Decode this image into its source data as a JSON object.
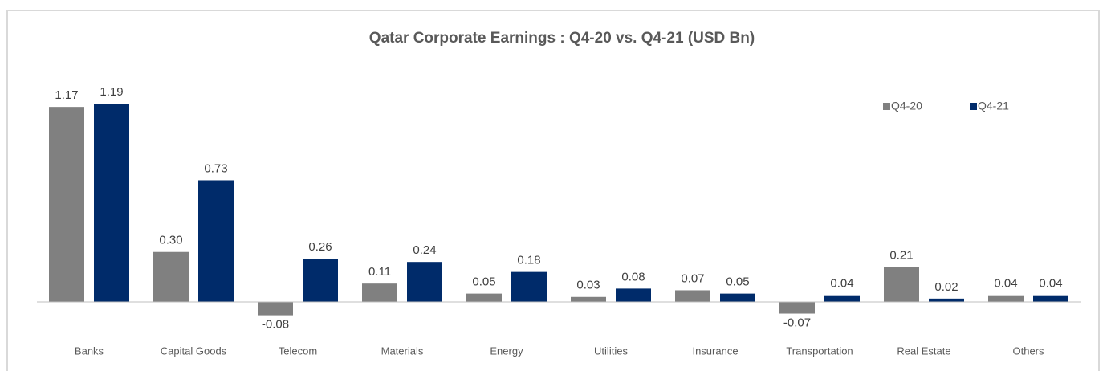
{
  "chart_data": {
    "type": "bar",
    "title": "Qatar Corporate Earnings : Q4-20 vs. Q4-21 (USD Bn)",
    "categories": [
      "Banks",
      "Capital Goods",
      "Telecom",
      "Materials",
      "Energy",
      "Utilities",
      "Insurance",
      "Transportation",
      "Real Estate",
      "Others"
    ],
    "series": [
      {
        "name": "Q4-20",
        "color": "#808080",
        "values": [
          1.17,
          0.3,
          -0.08,
          0.11,
          0.05,
          0.03,
          0.07,
          -0.07,
          0.21,
          0.04
        ],
        "value_labels": [
          "1.17",
          "0.30",
          "-0.08",
          "0.11",
          "0.05",
          "0.03",
          "0.07",
          "-0.07",
          "0.21",
          "0.04"
        ]
      },
      {
        "name": "Q4-21",
        "color": "#002b6a",
        "values": [
          1.19,
          0.73,
          0.26,
          0.24,
          0.18,
          0.08,
          0.05,
          0.04,
          0.02,
          0.04
        ],
        "value_labels": [
          "1.19",
          "0.73",
          "0.26",
          "0.24",
          "0.18",
          "0.08",
          "0.05",
          "0.04",
          "0.02",
          "0.04"
        ]
      }
    ],
    "legend": "top-right"
  }
}
